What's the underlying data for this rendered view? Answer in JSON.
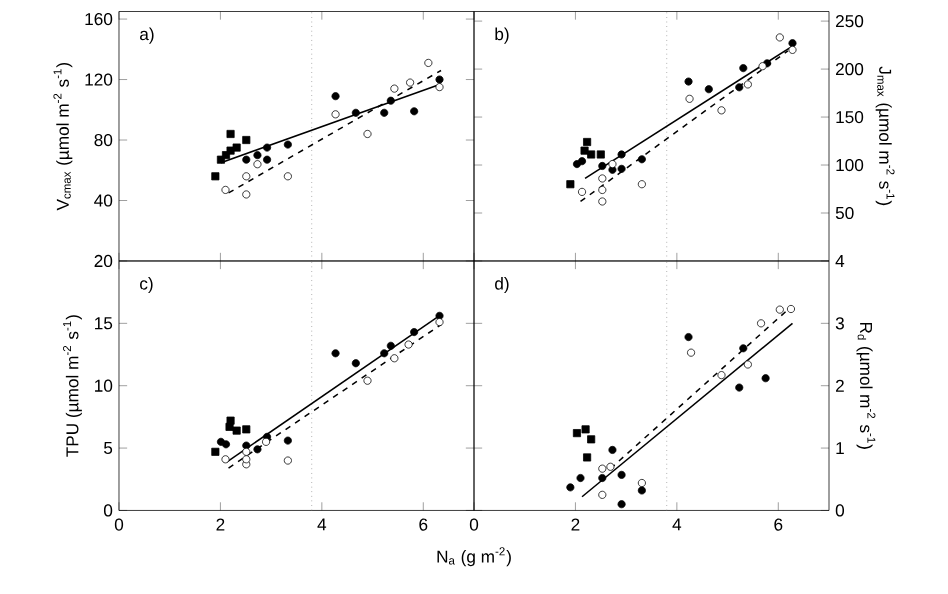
{
  "chart_data": [
    {
      "type": "scatter",
      "ylabel": "V$_{cmax}$ (µmol m$^{-2}$ s$^{-1}$)",
      "xlim": [
        0,
        7
      ],
      "xticks": [
        0,
        2,
        4,
        6
      ],
      "ylim": [
        0,
        165
      ],
      "yticks": [
        40,
        80,
        120,
        160
      ],
      "tick_labels": "y",
      "annotations": [
        "a)"
      ],
      "ref_lines": [
        {
          "axis": "x",
          "value": 3.8,
          "line_style": "dotted"
        }
      ],
      "series": [
        {
          "marker": "square",
          "color": "#000000",
          "x": [
            1.9,
            2.01,
            2.11,
            2.2,
            2.32,
            2.2,
            2.51
          ],
          "values": [
            56,
            67,
            70,
            73,
            75,
            84,
            80
          ]
        },
        {
          "marker": "circle",
          "color": "#000000",
          "x": [
            2.51,
            2.73,
            2.92,
            2.92,
            3.33,
            4.27,
            4.67,
            5.23,
            5.36,
            5.82,
            6.32
          ],
          "values": [
            67,
            70,
            67,
            75,
            77,
            109,
            98,
            98,
            106,
            99,
            120
          ]
        },
        {
          "marker": "circle",
          "color": "#ffffff",
          "x": [
            2.1,
            2.51,
            2.51,
            2.73,
            3.33,
            4.27,
            4.9,
            5.43,
            5.74,
            6.1,
            6.32
          ],
          "values": [
            47,
            44,
            56,
            64,
            56,
            97,
            84,
            114,
            118,
            131,
            115
          ]
        },
        {
          "type": "line",
          "marker": "none",
          "line_style": "solid",
          "color": "#000000",
          "x": [
            2.01,
            6.35
          ],
          "values": [
            65,
            117
          ]
        },
        {
          "type": "line",
          "marker": "none",
          "line_style": "dashed",
          "color": "#000000",
          "x": [
            2.16,
            6.35
          ],
          "values": [
            45,
            126
          ]
        }
      ]
    },
    {
      "type": "scatter",
      "ylabel": "J$_{max}$ (µmol m$^{-2}$ s$^{-1}$)",
      "xlim": [
        0,
        7
      ],
      "xticks": [
        0,
        2,
        4,
        6
      ],
      "ylim": [
        0,
        260
      ],
      "yticks": [
        50,
        100,
        150,
        200,
        250
      ],
      "tick_labels": "y",
      "annotations": [
        "b)"
      ],
      "ref_lines": [
        {
          "axis": "x",
          "value": 3.8,
          "line_style": "dotted"
        }
      ],
      "series": [
        {
          "marker": "square",
          "color": "#000000",
          "x": [
            1.9,
            2.18,
            2.23,
            2.31,
            2.5
          ],
          "values": [
            80,
            115,
            124,
            111,
            111
          ]
        },
        {
          "marker": "circle",
          "color": "#000000",
          "x": [
            2.03,
            2.13,
            2.53,
            2.73,
            2.91,
            2.91,
            3.31,
            4.23,
            4.63,
            5.23,
            5.31,
            5.78,
            6.28
          ],
          "values": [
            101,
            104,
            99,
            95,
            96,
            111,
            106,
            187,
            179,
            181,
            201,
            206,
            227
          ]
        },
        {
          "marker": "circle",
          "color": "#ffffff",
          "x": [
            2.13,
            2.53,
            2.53,
            2.53,
            2.73,
            3.31,
            4.25,
            4.88,
            5.4,
            5.69,
            6.03,
            6.28
          ],
          "values": [
            72,
            62,
            74,
            86,
            101,
            80,
            169,
            157,
            184,
            203,
            233,
            220
          ]
        },
        {
          "type": "line",
          "marker": "none",
          "line_style": "solid",
          "color": "#000000",
          "x": [
            2.19,
            6.28
          ],
          "values": [
            86,
            224
          ]
        },
        {
          "type": "line",
          "marker": "none",
          "line_style": "dashed",
          "color": "#000000",
          "x": [
            2.1,
            6.19
          ],
          "values": [
            62,
            219
          ]
        }
      ]
    },
    {
      "type": "scatter",
      "xlabel": "N$_{a}$ (g m$^{-2}$)",
      "ylabel": "TPU (µmol m$^{-2}$ s$^{-1}$)",
      "xlim": [
        0,
        7
      ],
      "xticks": [
        0,
        2,
        4,
        6
      ],
      "ylim": [
        0,
        20
      ],
      "yticks": [
        0,
        5,
        10,
        15,
        20
      ],
      "annotations": [
        "c)"
      ],
      "ref_lines": [
        {
          "axis": "x",
          "value": 3.8,
          "line_style": "dotted"
        }
      ],
      "series": [
        {
          "marker": "square",
          "color": "#000000",
          "x": [
            1.9,
            2.18,
            2.2,
            2.32,
            2.51
          ],
          "values": [
            4.7,
            6.7,
            7.2,
            6.4,
            6.5
          ]
        },
        {
          "marker": "circle",
          "color": "#000000",
          "x": [
            2.01,
            2.11,
            2.51,
            2.73,
            2.92,
            3.33,
            4.27,
            4.67,
            5.23,
            5.36,
            5.82,
            6.32
          ],
          "values": [
            5.5,
            5.3,
            5.2,
            4.9,
            5.9,
            5.6,
            12.6,
            11.8,
            12.6,
            13.2,
            14.3,
            15.6
          ]
        },
        {
          "marker": "circle",
          "color": "#ffffff",
          "x": [
            2.1,
            2.51,
            2.51,
            2.51,
            2.9,
            3.33,
            4.9,
            5.43,
            5.71,
            6.32
          ],
          "values": [
            4.1,
            3.7,
            4.1,
            4.7,
            5.5,
            4.0,
            10.4,
            12.2,
            13.3,
            15.1
          ]
        },
        {
          "type": "line",
          "marker": "none",
          "line_style": "solid",
          "color": "#000000",
          "x": [
            2.13,
            6.35
          ],
          "values": [
            3.9,
            15.7
          ]
        },
        {
          "type": "line",
          "marker": "none",
          "line_style": "dashed",
          "color": "#000000",
          "x": [
            2.16,
            6.35
          ],
          "values": [
            3.4,
            14.9
          ]
        }
      ]
    },
    {
      "type": "scatter",
      "ylabel": "R$_{d}$ (µmol m$^{-2}$ s$^{-1}$)",
      "xlim": [
        0,
        7
      ],
      "xticks": [
        0,
        2,
        4,
        6
      ],
      "ylim": [
        0,
        4
      ],
      "yticks": [
        0,
        1,
        2,
        3,
        4
      ],
      "annotations": [
        "d)"
      ],
      "ref_lines": [
        {
          "axis": "x",
          "value": 3.8,
          "line_style": "dotted"
        }
      ],
      "series": [
        {
          "marker": "square",
          "color": "#000000",
          "x": [
            2.23,
            2.03,
            2.31,
            2.2
          ],
          "values": [
            0.85,
            1.24,
            1.14,
            1.3
          ]
        },
        {
          "marker": "circle",
          "color": "#000000",
          "x": [
            2.91,
            1.9,
            2.1,
            2.53,
            2.91,
            3.31,
            2.73,
            5.23,
            5.75,
            5.31,
            4.23
          ],
          "values": [
            0.1,
            0.37,
            0.52,
            0.52,
            0.57,
            0.32,
            0.97,
            1.97,
            2.12,
            2.6,
            2.78
          ]
        },
        {
          "marker": "circle",
          "color": "#ffffff",
          "x": [
            2.53,
            2.53,
            2.69,
            3.31,
            4.28,
            4.88,
            5.4,
            5.66,
            6.03,
            6.25
          ],
          "values": [
            0.25,
            0.67,
            0.7,
            0.44,
            2.53,
            2.17,
            2.34,
            3.0,
            3.22,
            3.23
          ]
        },
        {
          "type": "line",
          "marker": "none",
          "line_style": "solid",
          "color": "#000000",
          "x": [
            2.13,
            6.28
          ],
          "values": [
            0.22,
            3.0
          ]
        },
        {
          "type": "line",
          "marker": "none",
          "line_style": "dashed",
          "color": "#000000",
          "x": [
            2.69,
            6.19
          ],
          "values": [
            0.67,
            3.22
          ]
        }
      ]
    }
  ]
}
